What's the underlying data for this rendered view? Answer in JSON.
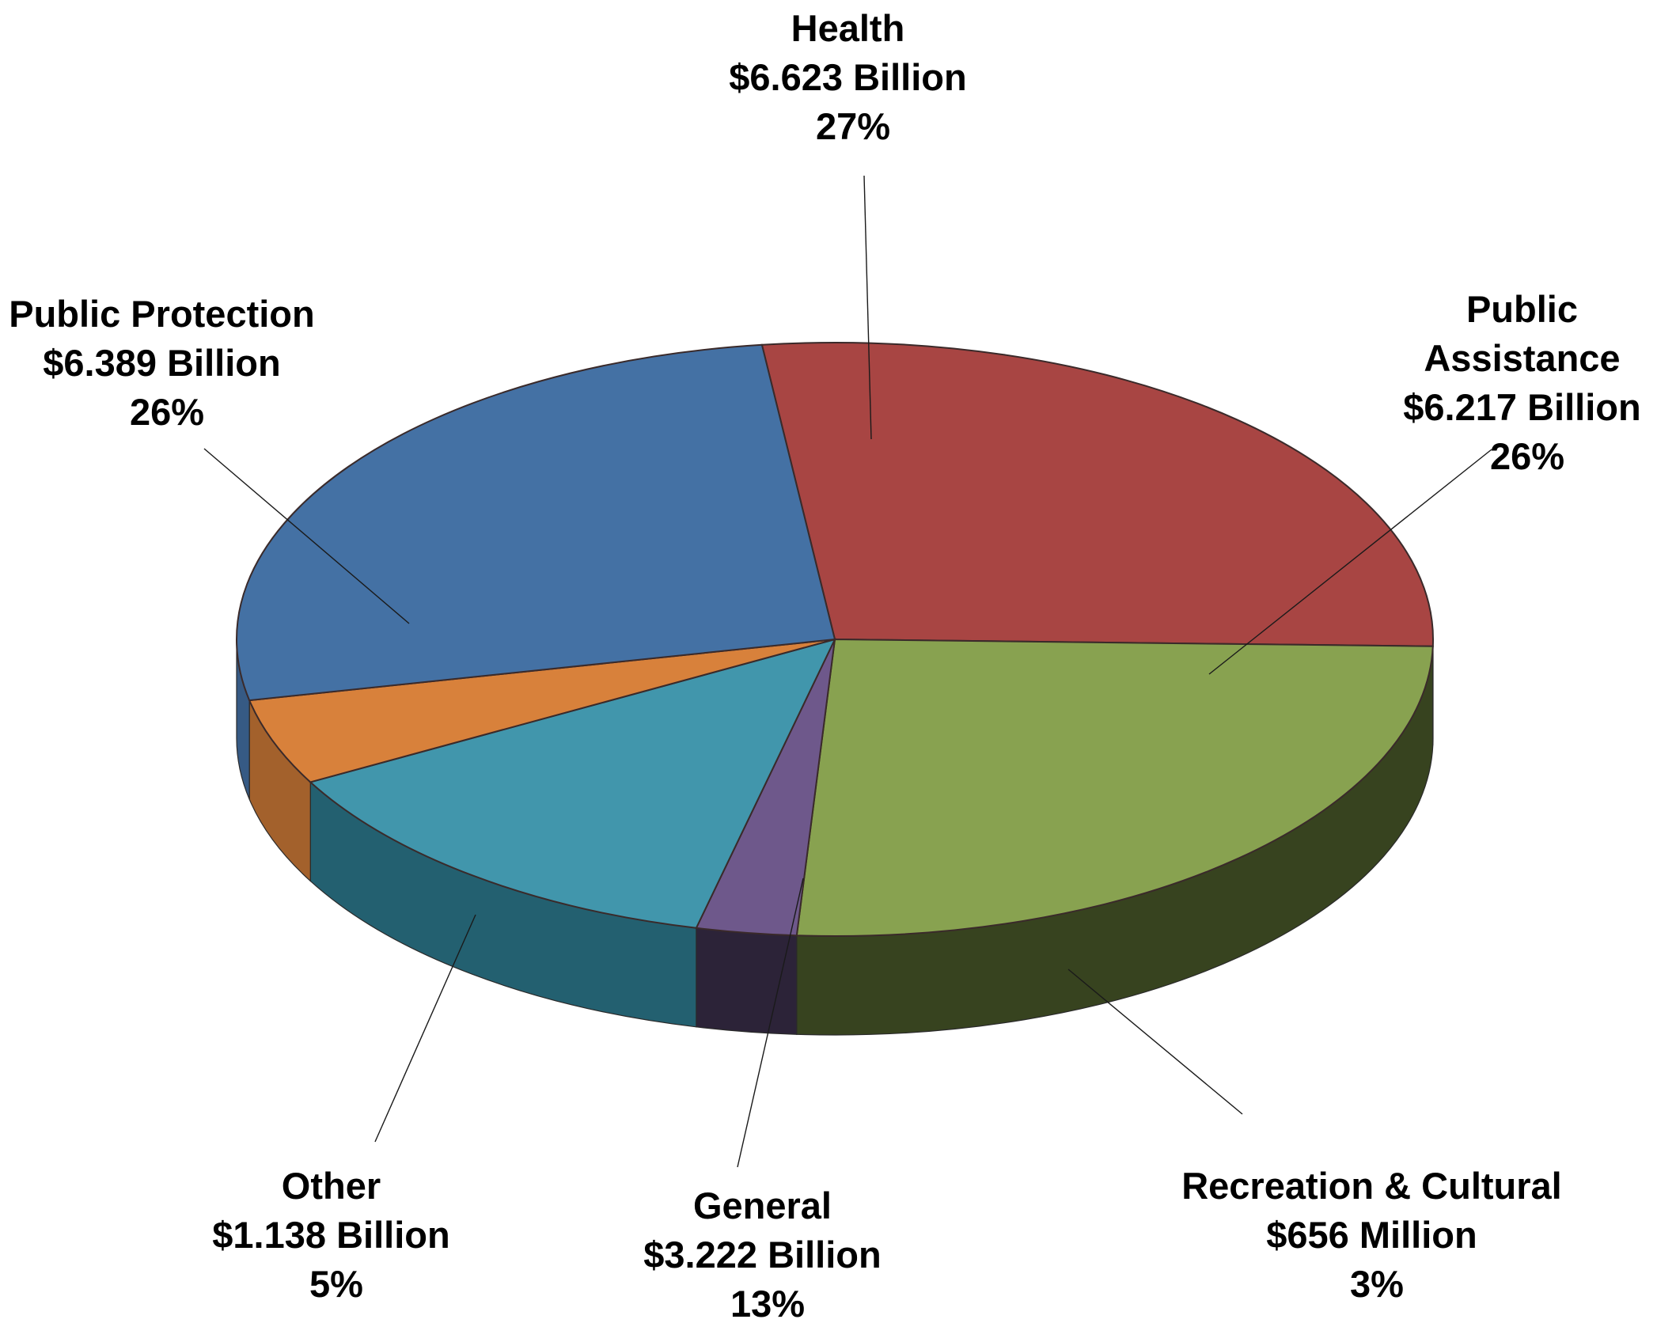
{
  "chart_data": {
    "type": "pie",
    "style": "3d",
    "slices": [
      {
        "name": "Health",
        "amount": "$6.623 Billion",
        "percent": "27%",
        "value": 6.623,
        "color": "#a84543",
        "side_color": "#6b2523"
      },
      {
        "name": "Public Assistance",
        "amount": "$6.217 Billion",
        "percent": "26%",
        "value": 6.217,
        "color": "#88a250",
        "side_color": "#37431f"
      },
      {
        "name": "Recreation & Cultural",
        "amount": "$656 Million",
        "percent": "3%",
        "value": 0.656,
        "color": "#6e588b",
        "side_color": "#2c2338"
      },
      {
        "name": "General",
        "amount": "$3.222 Billion",
        "percent": "13%",
        "value": 3.222,
        "color": "#4196ac",
        "side_color": "#236070"
      },
      {
        "name": "Other",
        "amount": "$1.138 Billion",
        "percent": "5%",
        "value": 1.138,
        "color": "#d8813b",
        "side_color": "#a3612c"
      },
      {
        "name": "Public Protection",
        "amount": "$6.389 Billion",
        "percent": "26%",
        "value": 6.389,
        "color": "#4471a4",
        "side_color": "#365a84"
      }
    ]
  }
}
